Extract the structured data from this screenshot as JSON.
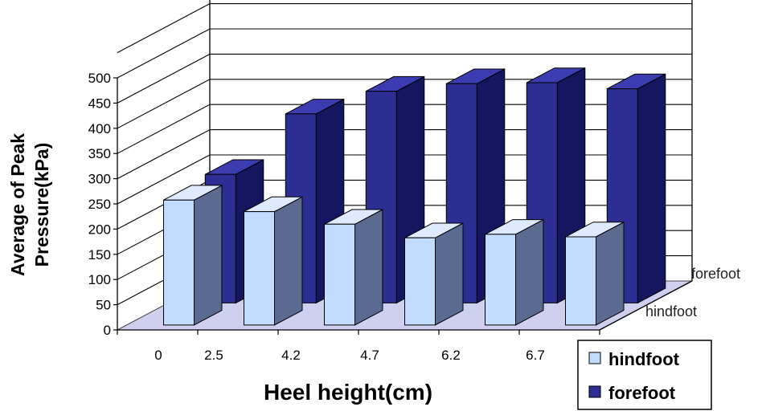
{
  "chart_data": {
    "type": "bar",
    "categories": [
      "0",
      "2.5",
      "4.2",
      "4.7",
      "6.2",
      "6.7"
    ],
    "series": [
      {
        "name": "hindfoot",
        "values": [
          248,
          225,
          200,
          173,
          180,
          175
        ]
      },
      {
        "name": "forefoot",
        "values": [
          255,
          375,
          420,
          435,
          437,
          425
        ]
      }
    ],
    "depth_labels": [
      "hindfoot",
      "forefoot"
    ],
    "xlabel": "Heel height(cm)",
    "ylabel_lines": [
      "Average of Peak",
      "Pressure(kPa)"
    ],
    "ylim": [
      0,
      500
    ],
    "yticks": [
      0,
      50,
      100,
      150,
      200,
      250,
      300,
      350,
      400,
      450,
      500
    ],
    "grid": true,
    "legend_position": "bottom-right",
    "colors": {
      "hindfoot_front": "#c2dcff",
      "hindfoot_top": "#ddeaff",
      "hindfoot_side": "#5a6a90",
      "forefoot_front": "#2c2e94",
      "forefoot_top": "#3a3cb0",
      "forefoot_side": "#141660",
      "floor": "#cfcff0",
      "grid": "#000000"
    }
  }
}
